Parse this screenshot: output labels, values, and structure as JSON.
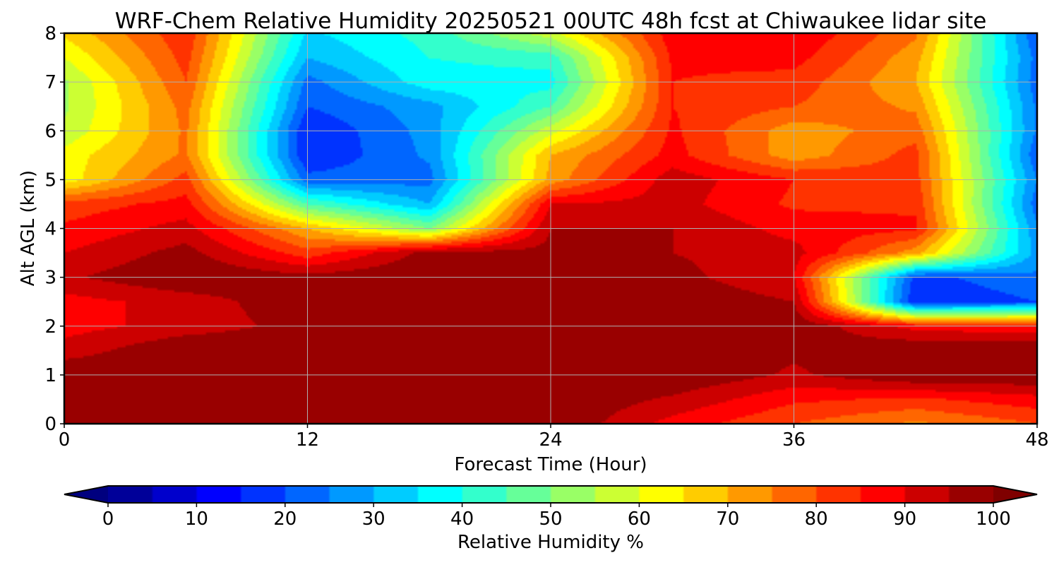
{
  "chart_data": {
    "type": "heatmap",
    "title": "WRF-Chem Relative Humidity 20250521 00UTC 48h fcst at Chiwaukee lidar site",
    "xlabel": "Forecast Time (Hour)",
    "ylabel": "Alt AGL (km)",
    "xlim": [
      0,
      48
    ],
    "ylim": [
      0,
      8
    ],
    "xticks": [
      "0",
      "12",
      "24",
      "36",
      "48"
    ],
    "yticks": [
      "0",
      "1",
      "2",
      "3",
      "4",
      "5",
      "6",
      "7",
      "8"
    ],
    "grid": true,
    "colormap": "jet",
    "colorbar": {
      "label": "Relative Humidity %",
      "range": [
        0,
        100
      ],
      "ticks": [
        "0",
        "10",
        "20",
        "30",
        "40",
        "50",
        "60",
        "70",
        "80",
        "90",
        "100"
      ],
      "extend": "both",
      "under_color": "#00007f",
      "over_color": "#7f0000"
    },
    "x": [
      0,
      6,
      12,
      18,
      24,
      30,
      36,
      42,
      48
    ],
    "y": [
      0,
      0.5,
      1,
      1.5,
      2,
      2.5,
      3,
      3.5,
      4,
      4.5,
      5,
      5.5,
      6,
      6.5,
      7,
      7.5,
      8
    ],
    "z": [
      [
        100,
        96,
        100,
        100,
        100,
        88,
        80,
        74,
        80
      ],
      [
        100,
        100,
        100,
        100,
        100,
        94,
        86,
        84,
        88
      ],
      [
        100,
        100,
        100,
        100,
        100,
        100,
        94,
        100,
        100
      ],
      [
        92,
        100,
        100,
        100,
        100,
        100,
        96,
        100,
        100
      ],
      [
        88,
        92,
        97,
        100,
        100,
        100,
        99,
        88,
        86
      ],
      [
        88,
        92,
        99,
        100,
        100,
        100,
        95,
        15,
        20
      ],
      [
        94,
        100,
        97,
        100,
        100,
        97,
        90,
        18,
        24
      ],
      [
        90,
        97,
        82,
        97,
        97,
        95,
        92,
        72,
        28
      ],
      [
        86,
        92,
        70,
        50,
        95,
        95,
        88,
        86,
        26
      ],
      [
        82,
        87,
        45,
        30,
        90,
        92,
        84,
        84,
        22
      ],
      [
        62,
        82,
        22,
        23,
        72,
        93,
        85,
        82,
        25
      ],
      [
        62,
        76,
        15,
        26,
        70,
        87,
        72,
        82,
        21
      ],
      [
        56,
        76,
        15,
        27,
        58,
        86,
        72,
        78,
        24
      ],
      [
        54,
        77,
        20,
        28,
        45,
        85,
        80,
        74,
        24
      ],
      [
        54,
        80,
        23,
        38,
        38,
        85,
        83,
        70,
        22
      ],
      [
        60,
        82,
        30,
        40,
        42,
        86,
        87,
        72,
        23
      ],
      [
        66,
        84,
        34,
        42,
        58,
        88,
        90,
        76,
        20
      ]
    ]
  }
}
